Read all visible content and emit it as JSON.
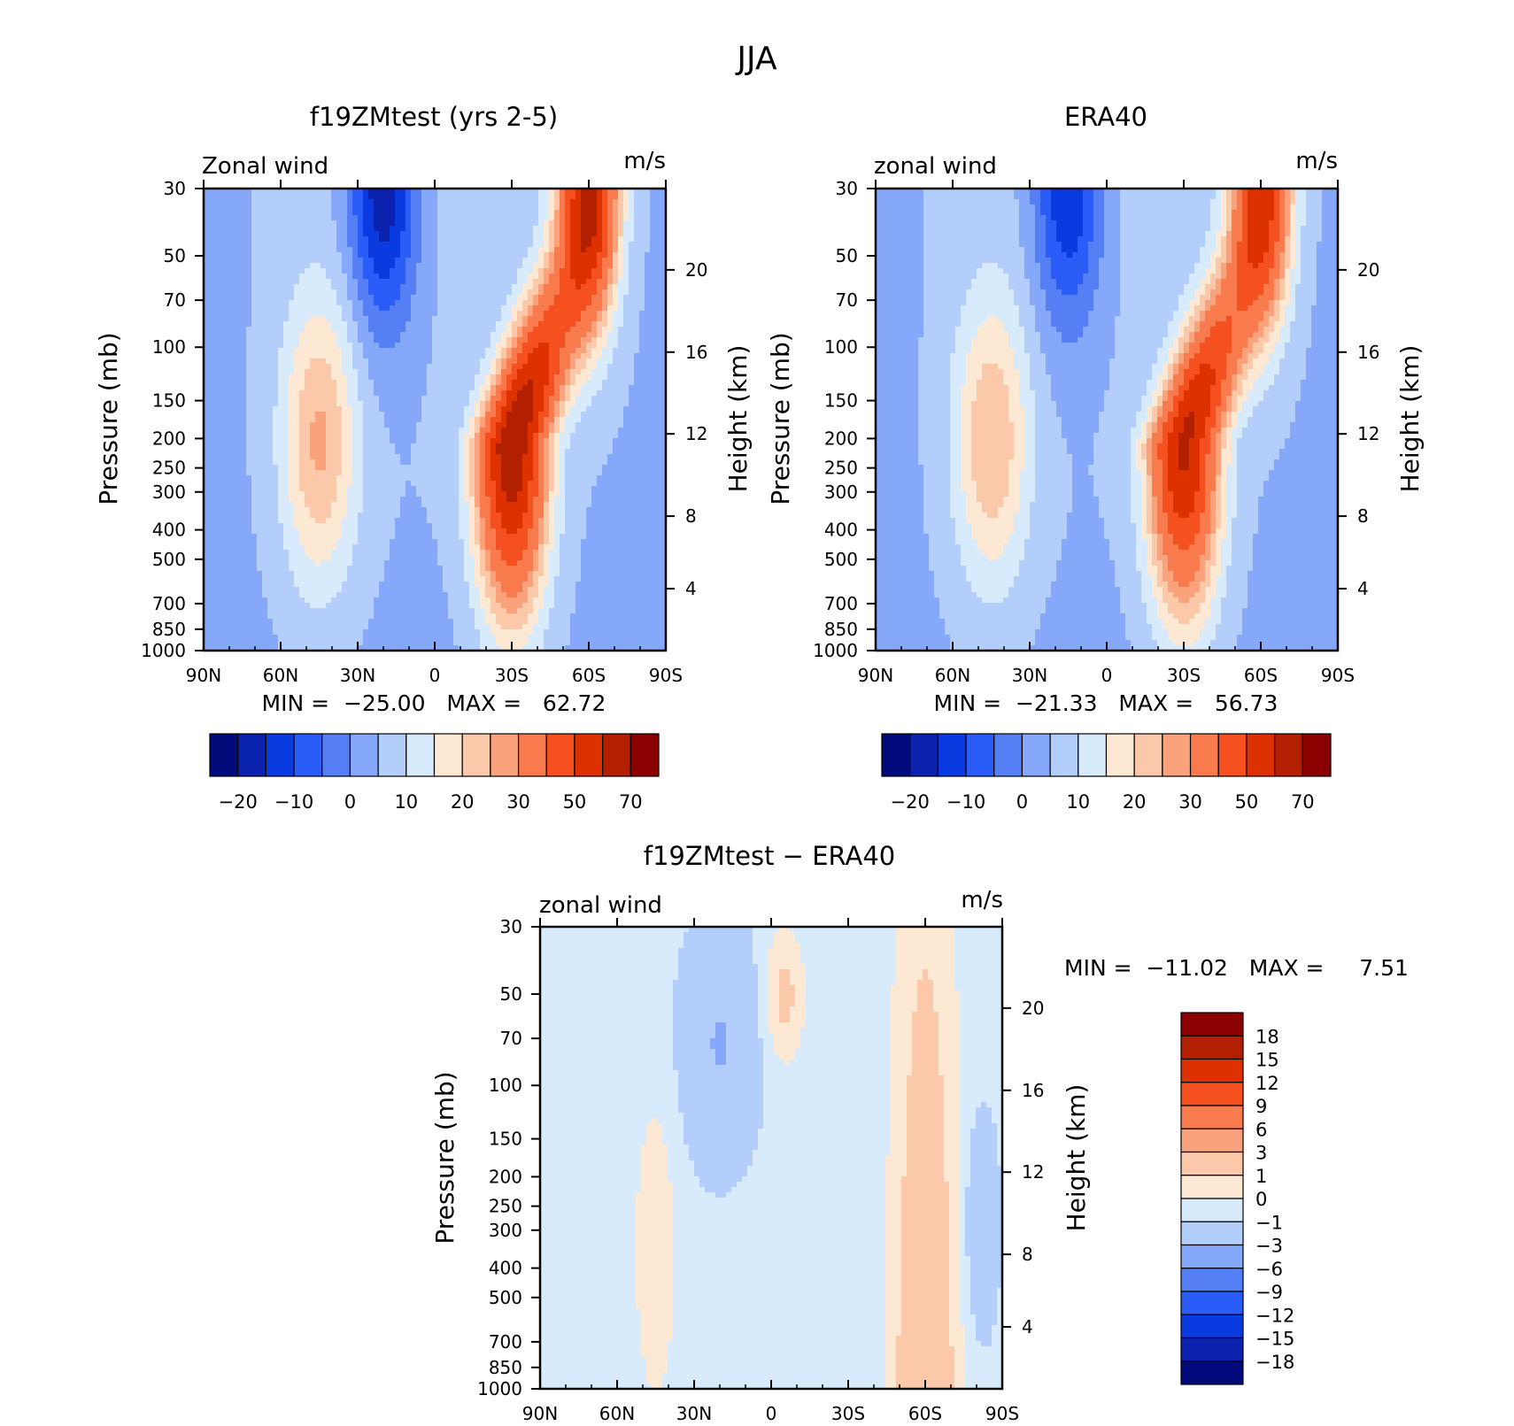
{
  "figure_title": "JJA",
  "chart_data": [
    {
      "type": "heatmap",
      "title": "f19ZMtest (yrs 2-5)",
      "left_label": "Zonal wind",
      "units": "m/s",
      "ylabel": "Pressure (mb)",
      "ylabel_right": "Height (km)",
      "x_ticks": [
        "90N",
        "60N",
        "30N",
        "0",
        "30S",
        "60S",
        "90S"
      ],
      "y_ticks": [
        "30",
        "50",
        "70",
        "100",
        "150",
        "200",
        "250",
        "300",
        "400",
        "500",
        "700",
        "850",
        "1000"
      ],
      "y_right_ticks": [
        "20",
        "16",
        "12",
        "8",
        "4"
      ],
      "stats": "MIN =  −25.00   MAX =   62.72",
      "colorbar_levels": [
        "−20",
        "−10",
        "0",
        "10",
        "20",
        "30",
        "50",
        "70"
      ],
      "colorbar_colors": [
        "#000a7a",
        "#0a22ad",
        "#0a3be0",
        "#2a5cf7",
        "#557ff5",
        "#85a8fa",
        "#b3cefa",
        "#d7ebfd",
        "#fde8d4",
        "#fcc8aa",
        "#faa27c",
        "#f97a4d",
        "#f5501f",
        "#dd3200",
        "#b32000",
        "#8b0000"
      ],
      "field": {
        "shape": "zonal",
        "jet_s_max": 64,
        "jet_s_lat": 30,
        "jet_s_y": 1.0,
        "jet_s_top": 54,
        "jet_s_top_lat": 60,
        "jet_n_max": 21,
        "jet_n_lat": -45,
        "jet_n_y": 0.55,
        "east_min": -25,
        "east_lat": -20
      }
    },
    {
      "type": "heatmap",
      "title": "ERA40",
      "left_label": "zonal wind",
      "units": "m/s",
      "ylabel": "Pressure (mb)",
      "ylabel_right": "Height (km)",
      "x_ticks": [
        "90N",
        "60N",
        "30N",
        "0",
        "30S",
        "60S",
        "90S"
      ],
      "y_ticks": [
        "30",
        "50",
        "70",
        "100",
        "150",
        "200",
        "250",
        "300",
        "400",
        "500",
        "700",
        "850",
        "1000"
      ],
      "y_right_ticks": [
        "20",
        "16",
        "12",
        "8",
        "4"
      ],
      "stats": "MIN =  −21.33   MAX =   56.73",
      "colorbar_levels": [
        "−20",
        "−10",
        "0",
        "10",
        "20",
        "30",
        "50",
        "70"
      ],
      "colorbar_colors": [
        "#000a7a",
        "#0a22ad",
        "#0a3be0",
        "#2a5cf7",
        "#557ff5",
        "#85a8fa",
        "#b3cefa",
        "#d7ebfd",
        "#fde8d4",
        "#fcc8aa",
        "#faa27c",
        "#f97a4d",
        "#f5501f",
        "#dd3200",
        "#b32000",
        "#8b0000"
      ],
      "field": {
        "shape": "zonal",
        "jet_s_max": 57,
        "jet_s_lat": 30,
        "jet_s_y": 1.0,
        "jet_s_top": 48,
        "jet_s_top_lat": 60,
        "jet_n_max": 20,
        "jet_n_lat": -45,
        "jet_n_y": 0.55,
        "east_min": -21,
        "east_lat": -15
      }
    },
    {
      "type": "heatmap",
      "title": "f19ZMtest − ERA40",
      "left_label": "zonal wind",
      "units": "m/s",
      "ylabel": "Pressure (mb)",
      "ylabel_right": "Height (km)",
      "x_ticks": [
        "90N",
        "60N",
        "30N",
        "0",
        "30S",
        "60S",
        "90S"
      ],
      "y_ticks": [
        "30",
        "50",
        "70",
        "100",
        "150",
        "200",
        "250",
        "300",
        "400",
        "500",
        "700",
        "850",
        "1000"
      ],
      "y_right_ticks": [
        "20",
        "16",
        "12",
        "8",
        "4"
      ],
      "stats": "MIN =  −11.02   MAX =     7.51",
      "colorbar_levels": [
        "18",
        "15",
        "12",
        "9",
        "6",
        "3",
        "1",
        "0",
        "−1",
        "−3",
        "−6",
        "−9",
        "−12",
        "−15",
        "−18"
      ],
      "colorbar_colors": [
        "#8b0000",
        "#b32000",
        "#dd3200",
        "#f5501f",
        "#f97a4d",
        "#faa27c",
        "#fcc8aa",
        "#fde8d4",
        "#d7ebfd",
        "#b3cefa",
        "#85a8fa",
        "#557ff5",
        "#2a5cf7",
        "#0a3be0",
        "#0a22ad",
        "#000a7a"
      ],
      "field": {
        "shape": "diff"
      }
    }
  ]
}
